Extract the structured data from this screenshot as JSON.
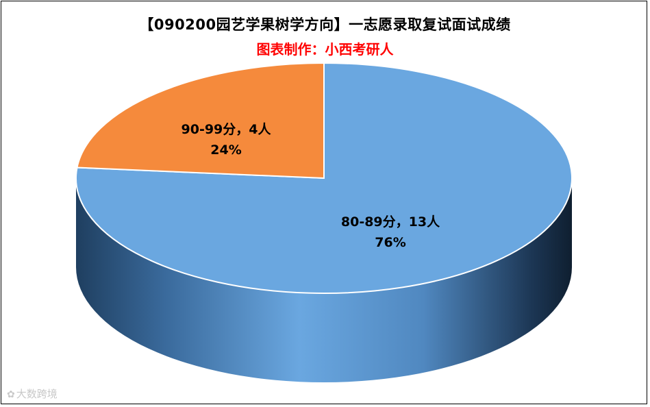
{
  "header": {
    "title": "【090200园艺学果树学方向】一志愿录取复试面试成绩",
    "subtitle": "图表制作：小西考研人"
  },
  "colors": {
    "subtitle": "#ff0000",
    "series": [
      "#6aa7e0",
      "#f58a3c"
    ],
    "side_dark": "#1a3550",
    "side_light": "#5e8fc4"
  },
  "chart_data": {
    "type": "pie",
    "style": "3d",
    "title": "【090200园艺学果树学方向】一志愿录取复试面试成绩",
    "subtitle": "图表制作：小西考研人",
    "slices": [
      {
        "label": "80-89分，13人",
        "value": 13,
        "percent": "76%",
        "color": "#6aa7e0"
      },
      {
        "label": "90-99分，4人",
        "value": 4,
        "percent": "24%",
        "color": "#f58a3c"
      }
    ],
    "legend": "none"
  },
  "watermark": {
    "icon": "logo-icon",
    "text": "大数跨境"
  }
}
